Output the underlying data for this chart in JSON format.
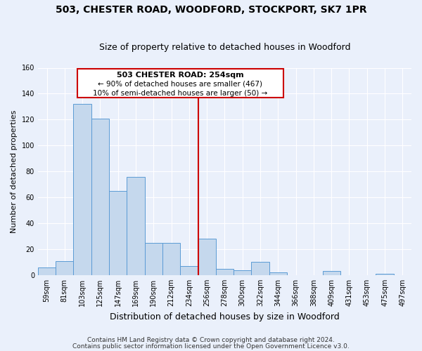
{
  "title1": "503, CHESTER ROAD, WOODFORD, STOCKPORT, SK7 1PR",
  "title2": "Size of property relative to detached houses in Woodford",
  "xlabel": "Distribution of detached houses by size in Woodford",
  "ylabel": "Number of detached properties",
  "bin_labels": [
    "59sqm",
    "81sqm",
    "103sqm",
    "125sqm",
    "147sqm",
    "169sqm",
    "190sqm",
    "212sqm",
    "234sqm",
    "256sqm",
    "278sqm",
    "300sqm",
    "322sqm",
    "344sqm",
    "366sqm",
    "388sqm",
    "409sqm",
    "431sqm",
    "453sqm",
    "475sqm",
    "497sqm"
  ],
  "bar_heights": [
    6,
    11,
    132,
    121,
    65,
    76,
    25,
    25,
    7,
    28,
    5,
    4,
    10,
    2,
    0,
    0,
    3,
    0,
    0,
    1,
    0
  ],
  "bar_color": "#c5d8ed",
  "bar_edge_color": "#5b9bd5",
  "bg_color": "#eaf0fb",
  "plot_bg_color": "#eaf0fb",
  "grid_color": "#ffffff",
  "vline_color": "#cc0000",
  "vline_bin_index": 9,
  "annotation_title": "503 CHESTER ROAD: 254sqm",
  "annotation_line1": "← 90% of detached houses are smaller (467)",
  "annotation_line2": "10% of semi-detached houses are larger (50) →",
  "annotation_box_edge_color": "#cc0000",
  "annotation_box_face_color": "#ffffff",
  "footer1": "Contains HM Land Registry data © Crown copyright and database right 2024.",
  "footer2": "Contains public sector information licensed under the Open Government Licence v3.0.",
  "ylim": [
    0,
    160
  ],
  "yticks": [
    0,
    20,
    40,
    60,
    80,
    100,
    120,
    140,
    160
  ],
  "title1_fontsize": 10,
  "title2_fontsize": 9,
  "xlabel_fontsize": 9,
  "ylabel_fontsize": 8,
  "tick_fontsize": 7,
  "footer_fontsize": 6.5
}
